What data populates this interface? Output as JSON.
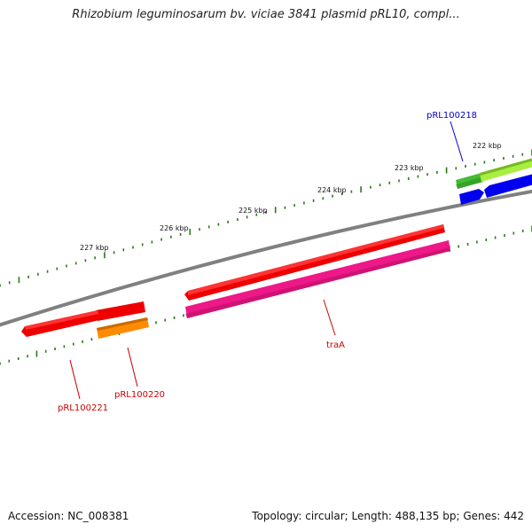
{
  "title": "Rhizobium leguminosarum bv. viciae 3841 plasmid pRL10, compl...",
  "ticks": [
    {
      "label": "222 kbp"
    },
    {
      "label": "223 kbp"
    },
    {
      "label": "224 kbp"
    },
    {
      "label": "225 kbp"
    },
    {
      "label": "226 kbp"
    },
    {
      "label": "227 kbp"
    }
  ],
  "genes": [
    {
      "label": "pRL100218",
      "color": "#0000cc"
    },
    {
      "label": "traA",
      "color": "#cc0000"
    },
    {
      "label": "pRL100220",
      "color": "#cc0000"
    },
    {
      "label": "pRL100221",
      "color": "#cc0000"
    }
  ],
  "feature_colors": {
    "backbone": "#808080",
    "tick": "#2a7a1a",
    "red": "#ee0000",
    "pink": "#ee1888",
    "orange": "#ff8c00",
    "green": "#44bb33",
    "light_green": "#aaee44",
    "blue": "#0000ee"
  },
  "footer": {
    "accession": "Accession: NC_008381",
    "summary": "Topology: circular; Length: 488,135 bp; Genes: 442"
  }
}
